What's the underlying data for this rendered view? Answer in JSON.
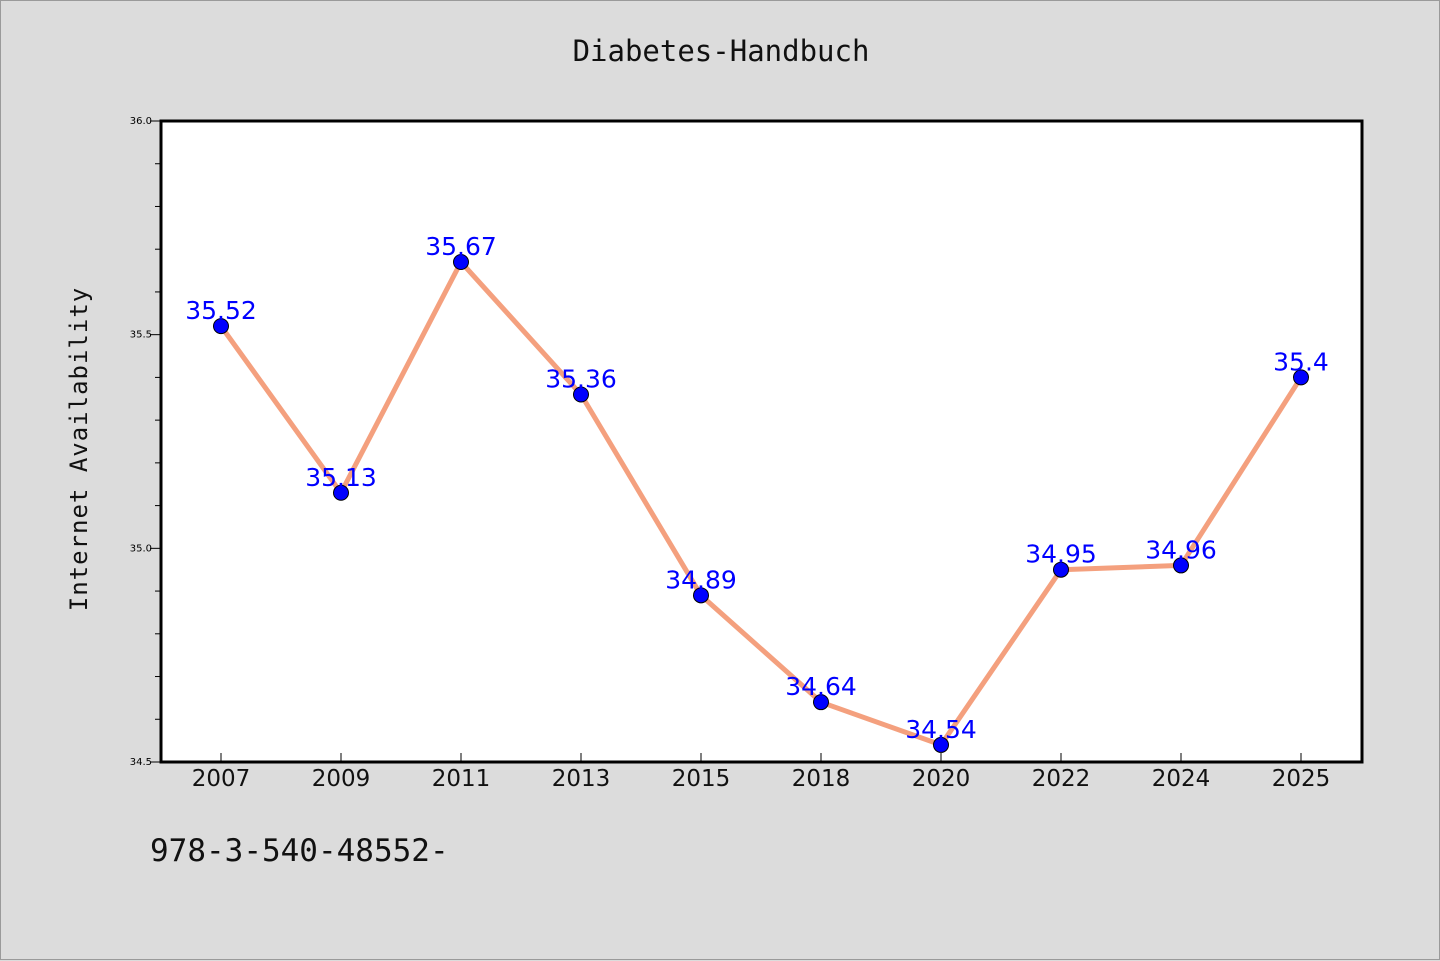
{
  "chart_data": {
    "type": "line",
    "title": "Diabetes-Handbuch",
    "xlabel": "",
    "ylabel": "Internet Availability",
    "categories": [
      "2007",
      "2009",
      "2011",
      "2013",
      "2015",
      "2018",
      "2020",
      "2022",
      "2024",
      "2025"
    ],
    "series": [
      {
        "values": [
          35.52,
          35.13,
          35.67,
          35.36,
          34.89,
          34.64,
          34.54,
          34.95,
          34.96,
          35.4
        ]
      }
    ],
    "data_labels": [
      "35.52",
      "35.13",
      "35.67",
      "35.36",
      "34.89",
      "34.64",
      "34.54",
      "34.95",
      "34.96",
      "35.4"
    ],
    "ylim": [
      34.5,
      36.0
    ],
    "yticks": [
      "34.5",
      "35.0",
      "35.5",
      "36.0"
    ],
    "grid": false,
    "legend": "none",
    "line_color": "#f4a07e",
    "marker_color": "#0000ff"
  },
  "footer": {
    "text": "978-3-540-48552-"
  }
}
